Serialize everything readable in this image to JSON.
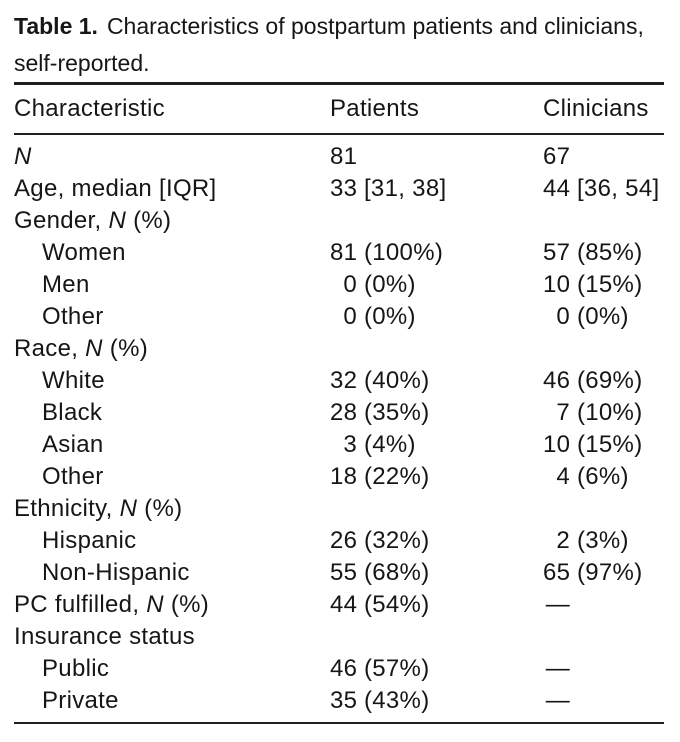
{
  "caption": {
    "label": "Table 1.",
    "line1": "Characteristics of postpartum patients and clinicians,",
    "line2": "self-reported."
  },
  "table": {
    "columns": [
      "Characteristic",
      "Patients",
      "Clinicians"
    ],
    "rows": [
      {
        "label": "N",
        "indent": false,
        "patients": "81",
        "clinicians": "67"
      },
      {
        "label": "Age, median [IQR]",
        "indent": false,
        "patients": "33 [31, 38]",
        "clinicians": "44 [36, 54]"
      },
      {
        "label": "Gender, N (%)",
        "indent": false,
        "patients": "",
        "clinicians": ""
      },
      {
        "label": "Women",
        "indent": true,
        "patients": "81 (100%)",
        "clinicians": "57 (85%)"
      },
      {
        "label": "Men",
        "indent": true,
        "patients": "0 (0%)",
        "clinicians": "10 (15%)"
      },
      {
        "label": "Other",
        "indent": true,
        "patients": "0 (0%)",
        "clinicians": "0 (0%)"
      },
      {
        "label": "Race, N (%)",
        "indent": false,
        "patients": "",
        "clinicians": ""
      },
      {
        "label": "White",
        "indent": true,
        "patients": "32 (40%)",
        "clinicians": "46 (69%)"
      },
      {
        "label": "Black",
        "indent": true,
        "patients": "28 (35%)",
        "clinicians": "7 (10%)"
      },
      {
        "label": "Asian",
        "indent": true,
        "patients": "3 (4%)",
        "clinicians": "10 (15%)"
      },
      {
        "label": "Other",
        "indent": true,
        "patients": "18 (22%)",
        "clinicians": "4 (6%)"
      },
      {
        "label": "Ethnicity, N (%)",
        "indent": false,
        "patients": "",
        "clinicians": ""
      },
      {
        "label": "Hispanic",
        "indent": true,
        "patients": "26 (32%)",
        "clinicians": "2 (3%)"
      },
      {
        "label": "Non-Hispanic",
        "indent": true,
        "patients": "55 (68%)",
        "clinicians": "65 (97%)"
      },
      {
        "label": "PC fulfilled, N (%)",
        "indent": false,
        "patients": "44 (54%)",
        "clinicians": "—"
      },
      {
        "label": "Insurance status",
        "indent": false,
        "patients": "",
        "clinicians": ""
      },
      {
        "label": "Public",
        "indent": true,
        "patients": "46 (57%)",
        "clinicians": "—"
      },
      {
        "label": "Private",
        "indent": true,
        "patients": "35 (43%)",
        "clinicians": "—"
      }
    ]
  },
  "colors": {
    "text": "#161616",
    "rule": "#1f1f1f",
    "background": "#ffffff"
  }
}
